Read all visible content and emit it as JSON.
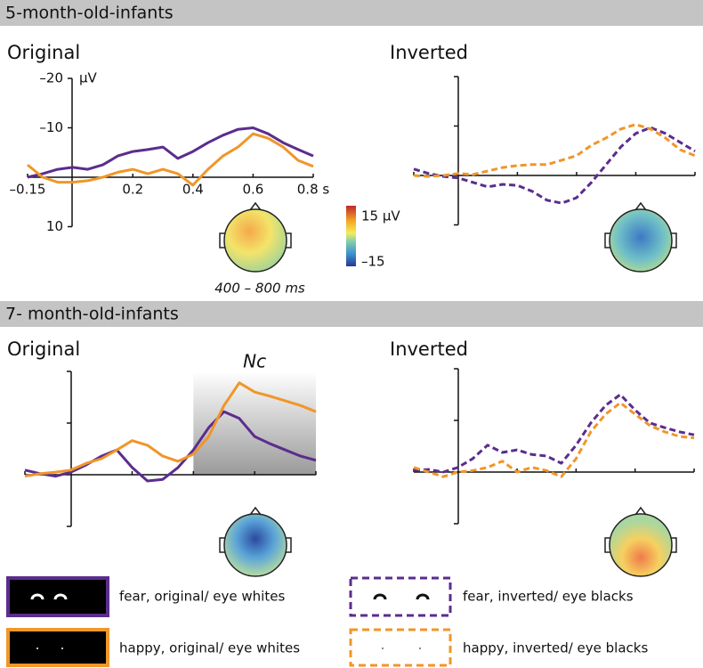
{
  "sections": [
    "5-month-old-infants",
    "7- month-old-infants"
  ],
  "chart_data": [
    {
      "type": "line",
      "title": "Original",
      "y_label": "µV",
      "y_inverted": true,
      "x": [
        -0.15,
        -0.1,
        -0.05,
        0,
        0.05,
        0.1,
        0.15,
        0.2,
        0.25,
        0.3,
        0.35,
        0.4,
        0.45,
        0.5,
        0.55,
        0.6,
        0.65,
        0.7,
        0.75,
        0.8
      ],
      "xlim": [
        -0.15,
        0.8
      ],
      "ylim": [
        -20,
        10
      ],
      "xticks": [
        {
          "value": -0.15,
          "label": "–0.15"
        },
        0.2,
        0.4,
        0.6,
        {
          "value": 0.8,
          "label": "0.8 s"
        }
      ],
      "yticks": [
        {
          "value": -20,
          "label": "–20"
        },
        {
          "value": -10,
          "label": "–10"
        },
        10
      ],
      "colorbar_labels": [
        "15 µV",
        "–15"
      ],
      "time_window": "400 – 800 ms",
      "series": [
        {
          "name": "fear, original/ eye whites",
          "color": "#5b2d8e",
          "dashed": false,
          "values": [
            0,
            -0.7,
            -1.6,
            -2,
            -1.6,
            -2.5,
            -4.3,
            -5.2,
            -5.6,
            -6.1,
            -3.8,
            -5.2,
            -7,
            -8.5,
            -9.7,
            -10,
            -8.8,
            -7,
            -5.6,
            -4.3
          ]
        },
        {
          "name": "happy, original/ eye whites",
          "color": "#f0962a",
          "dashed": false,
          "values": [
            -2.5,
            0,
            1,
            1,
            0.7,
            0,
            -1,
            -1.6,
            -0.7,
            -1.6,
            -0.7,
            1.6,
            -1.6,
            -4.3,
            -6.1,
            -8.8,
            -7.9,
            -6.1,
            -3.4,
            -2.2
          ]
        }
      ]
    },
    {
      "type": "line",
      "title": "Inverted",
      "y_inverted": true,
      "x": [
        -0.15,
        -0.1,
        -0.05,
        0,
        0.05,
        0.1,
        0.15,
        0.2,
        0.25,
        0.3,
        0.35,
        0.4,
        0.45,
        0.5,
        0.55,
        0.6,
        0.65,
        0.7,
        0.75,
        0.8
      ],
      "xlim": [
        -0.15,
        0.8
      ],
      "ylim": [
        -20,
        10
      ],
      "series": [
        {
          "name": "fear, inverted/ eye blacks",
          "color": "#5b2d8e",
          "dashed": true,
          "values": [
            -1.3,
            -0.4,
            0.2,
            0.5,
            1.4,
            2.3,
            1.8,
            2,
            3.2,
            5,
            5.6,
            4.5,
            1.4,
            -2.2,
            -5.8,
            -8.5,
            -9.7,
            -8.5,
            -6.7,
            -4.9
          ]
        },
        {
          "name": "happy, inverted/ eye blacks",
          "color": "#f0962a",
          "dashed": true,
          "values": [
            0,
            0.2,
            0,
            -0.4,
            -0.2,
            -0.9,
            -1.6,
            -2,
            -2.2,
            -2.2,
            -3.1,
            -4,
            -6.1,
            -7.6,
            -9.4,
            -10.3,
            -9.4,
            -7.6,
            -5.2,
            -4
          ]
        }
      ]
    },
    {
      "type": "line",
      "title": "Original",
      "annotation": "Nc",
      "shaded_region": [
        0.4,
        0.8
      ],
      "y_inverted": true,
      "x": [
        -0.15,
        -0.1,
        -0.05,
        0,
        0.05,
        0.1,
        0.15,
        0.2,
        0.25,
        0.3,
        0.35,
        0.4,
        0.45,
        0.5,
        0.55,
        0.6,
        0.65,
        0.7,
        0.75,
        0.8
      ],
      "xlim": [
        -0.15,
        0.8
      ],
      "ylim": [
        -20,
        10
      ],
      "series": [
        {
          "name": "fear, original/ eye whites",
          "color": "#5b2d8e",
          "dashed": false,
          "values": [
            -0.9,
            -0.2,
            0.3,
            -0.5,
            -1.9,
            -3.6,
            -4.8,
            -1.4,
            1.2,
            0.9,
            -1.4,
            -4.8,
            -9.1,
            -12.2,
            -10.9,
            -7.4,
            -6,
            -4.8,
            -3.6,
            -2.8
          ]
        },
        {
          "name": "happy, original/ eye whites",
          "color": "#f0962a",
          "dashed": false,
          "values": [
            0.3,
            -0.2,
            -0.5,
            -0.9,
            -2.2,
            -3.1,
            -4.8,
            -6.6,
            -5.7,
            -3.6,
            -2.6,
            -4,
            -7.4,
            -13.4,
            -17.8,
            -16,
            -15.2,
            -14.3,
            -13.4,
            -12.2
          ]
        }
      ]
    },
    {
      "type": "line",
      "title": "Inverted",
      "y_inverted": true,
      "x": [
        -0.15,
        -0.1,
        -0.05,
        0,
        0.05,
        0.1,
        0.15,
        0.2,
        0.25,
        0.3,
        0.35,
        0.4,
        0.45,
        0.5,
        0.55,
        0.6,
        0.65,
        0.7,
        0.75,
        0.8
      ],
      "xlim": [
        -0.15,
        0.8
      ],
      "ylim": [
        -20,
        10
      ],
      "series": [
        {
          "name": "fear, inverted/ eye blacks",
          "color": "#5b2d8e",
          "dashed": true,
          "values": [
            -0.3,
            -0.5,
            0,
            -0.9,
            -2.6,
            -5.2,
            -3.8,
            -4.3,
            -3.4,
            -3.1,
            -1.7,
            -5.2,
            -9.5,
            -12.9,
            -15,
            -12,
            -9.5,
            -8.6,
            -7.8,
            -7.2
          ]
        },
        {
          "name": "happy, inverted/ eye blacks",
          "color": "#f0962a",
          "dashed": true,
          "values": [
            -0.9,
            0,
            0.9,
            0,
            -0.3,
            -0.9,
            -2.1,
            0,
            -0.9,
            -0.3,
            0.9,
            -2.6,
            -7.8,
            -11.2,
            -13.4,
            -11.2,
            -9,
            -7.8,
            -6.9,
            -6.6
          ]
        }
      ]
    }
  ]
}
